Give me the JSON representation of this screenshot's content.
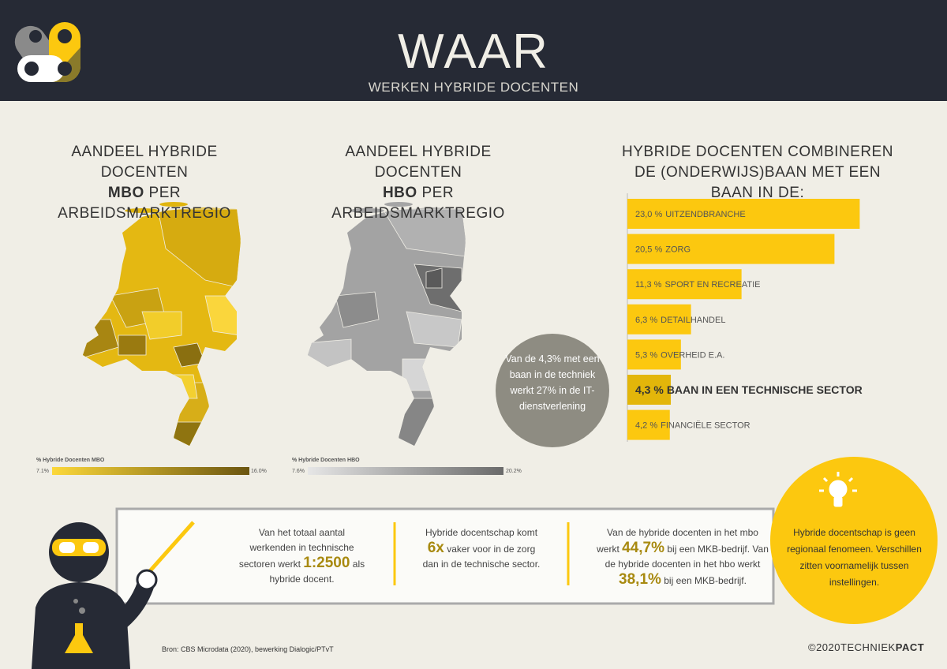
{
  "header": {
    "title": "WAAR",
    "subtitle": "WERKEN HYBRIDE DOCENTEN"
  },
  "maps": [
    {
      "title_line1": "AANDEEL HYBRIDE DOCENTEN",
      "title_bold": "MBO",
      "title_rest": "PER ARBEIDSMARKTREGIO",
      "legend_title": "% Hybride Docenten MBO",
      "legend_min": "7.1%",
      "legend_max": "16.0%"
    },
    {
      "title_line1": "AANDEEL HYBRIDE DOCENTEN",
      "title_bold": "HBO",
      "title_rest": "PER ARBEIDSMARKTREGIO",
      "legend_title": "% Hybride Docenten HBO",
      "legend_min": "7.6%",
      "legend_max": "20.2%"
    }
  ],
  "chart_data": {
    "type": "bar",
    "orientation": "horizontal",
    "title": "HYBRIDE DOCENTEN COMBINEREN DE (ONDERWIJS)BAAN MET EEN BAAN IN DE:",
    "categories": [
      "UITZENDBRANCHE",
      "ZORG",
      "SPORT EN RECREATIE",
      "DETAILHANDEL",
      "OVERHEID E.A.",
      "BAAN IN EEN TECHNISCHE SECTOR",
      "FINANCIËLE SECTOR"
    ],
    "values": [
      23.0,
      20.5,
      11.3,
      6.3,
      5.3,
      4.3,
      4.2
    ],
    "value_labels": [
      "23,0 %",
      "20,5 %",
      "11,3 %",
      "6,3 %",
      "5,3 %",
      "4,3 %",
      "4,2 %"
    ],
    "colors": [
      "#fcc80f",
      "#fcc80f",
      "#fcc80f",
      "#fcc80f",
      "#fcc80f",
      "#e3b60a",
      "#fcc80f"
    ],
    "emphasis": [
      false,
      false,
      false,
      false,
      false,
      true,
      false
    ],
    "xlim": [
      0,
      25
    ],
    "annotation": "Van de 4,3% met een baan in de techniek werkt 27% in de IT-dienstverlening"
  },
  "facts": [
    [
      "Van het totaal aantal werkenden in technische sectoren werkt",
      "1:2500",
      "als hybride docent."
    ],
    [
      "Hybride docentschap komt",
      "6x",
      "vaker voor in de zorg dan in de technische sector."
    ],
    [
      "Van de hybride docenten in het mbo werkt",
      "44,7%",
      "bij een MKB-bedrijf. Van de hybride docenten in het hbo werkt",
      "38,1%",
      "bij een MKB-bedrijf."
    ]
  ],
  "callout": "Hybride docentschap is geen regionaal fenomeen. Verschillen zitten voornamelijk tussen instellingen.",
  "footer": {
    "source": "Bron: CBS Microdata (2020), bewerking Dialogic/PTvT",
    "copyright": "©2020",
    "brand_light": "TECHNIEK",
    "brand_bold": "PACT"
  }
}
